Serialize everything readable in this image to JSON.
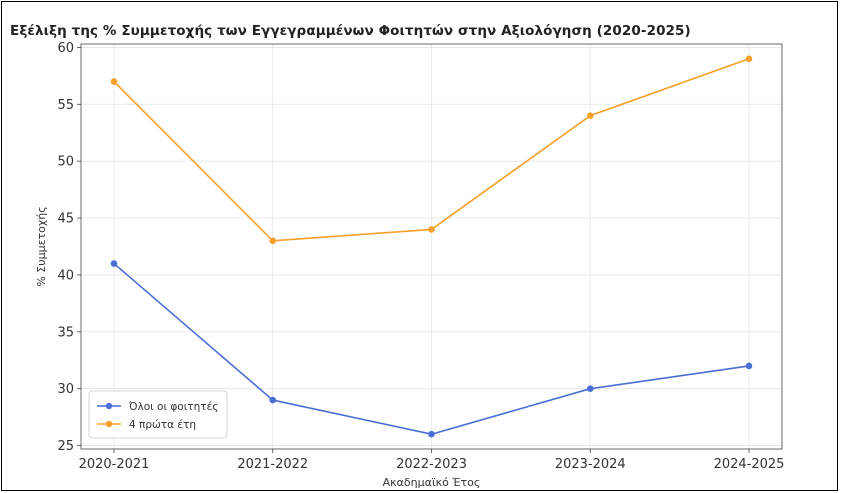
{
  "chart_data": {
    "type": "line",
    "title": "Εξέλιξη της % Συμμετοχής των Εγγεγραμμένων Φοιτητών στην Αξιολόγηση (2020-2025)",
    "xlabel": "Ακαδημαϊκό Έτος",
    "ylabel": "% Συμμετοχής",
    "categories": [
      "2020-2021",
      "2021-2022",
      "2022-2023",
      "2023-2024",
      "2024-2025"
    ],
    "ylim": [
      24.7,
      60.3
    ],
    "yticks": [
      25,
      30,
      35,
      40,
      45,
      50,
      55,
      60
    ],
    "grid": true,
    "legend_position": "lower-left",
    "series": [
      {
        "name": "Όλοι οι φοιτητές",
        "values": [
          41,
          29,
          26,
          30,
          32
        ],
        "color": "#4a6fd4"
      },
      {
        "name": "4 πρώτα έτη",
        "values": [
          57,
          43,
          44,
          54,
          59
        ],
        "color": "#f5a02a"
      }
    ]
  }
}
